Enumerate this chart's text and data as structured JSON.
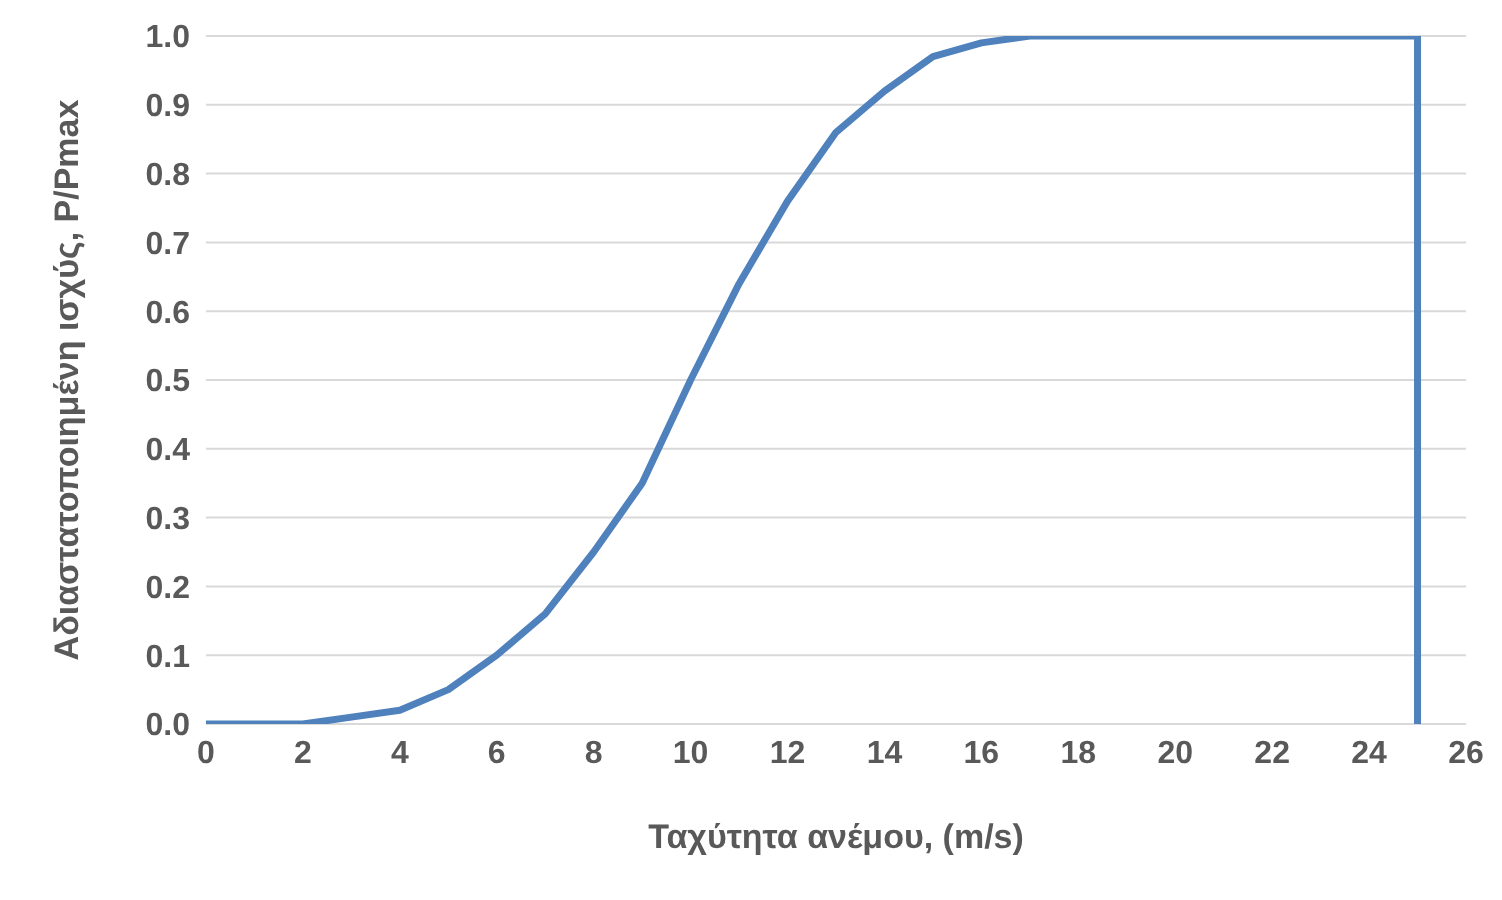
{
  "chart_data": {
    "type": "line",
    "xlabel": "Ταχύτητα ανέμου, (m/s)",
    "ylabel": "Αδιαστατοποιημένη ισχύς, P/Pmax",
    "x": [
      0,
      1,
      2,
      3,
      4,
      5,
      6,
      7,
      8,
      9,
      10,
      11,
      12,
      13,
      14,
      15,
      16,
      17,
      18,
      19,
      20,
      21,
      22,
      23,
      24,
      25,
      25
    ],
    "series": [
      {
        "color": "#4f81bd",
        "values": [
          0,
          0,
          0,
          0.01,
          0.02,
          0.05,
          0.1,
          0.16,
          0.25,
          0.35,
          0.5,
          0.64,
          0.76,
          0.86,
          0.92,
          0.97,
          0.99,
          1,
          1,
          1,
          1,
          1,
          1,
          1,
          1,
          1,
          0
        ]
      }
    ],
    "xlim": [
      0,
      26
    ],
    "xticks": [
      0,
      2,
      4,
      6,
      8,
      10,
      12,
      14,
      16,
      18,
      20,
      22,
      24,
      26
    ],
    "ylim": [
      0,
      1
    ],
    "yticks": [
      {
        "value": 0,
        "label": "0.0"
      },
      {
        "value": 0.1,
        "label": "0.1"
      },
      {
        "value": 0.2,
        "label": "0.2"
      },
      {
        "value": 0.3,
        "label": "0.3"
      },
      {
        "value": 0.4,
        "label": "0.4"
      },
      {
        "value": 0.5,
        "label": "0.5"
      },
      {
        "value": 0.6,
        "label": "0.6"
      },
      {
        "value": 0.7,
        "label": "0.7"
      },
      {
        "value": 0.8,
        "label": "0.8"
      },
      {
        "value": 0.9,
        "label": "0.9"
      },
      {
        "value": 1,
        "label": "1.0"
      }
    ],
    "grid": "y",
    "marker": "none",
    "line_style": "solid",
    "legend": false
  }
}
